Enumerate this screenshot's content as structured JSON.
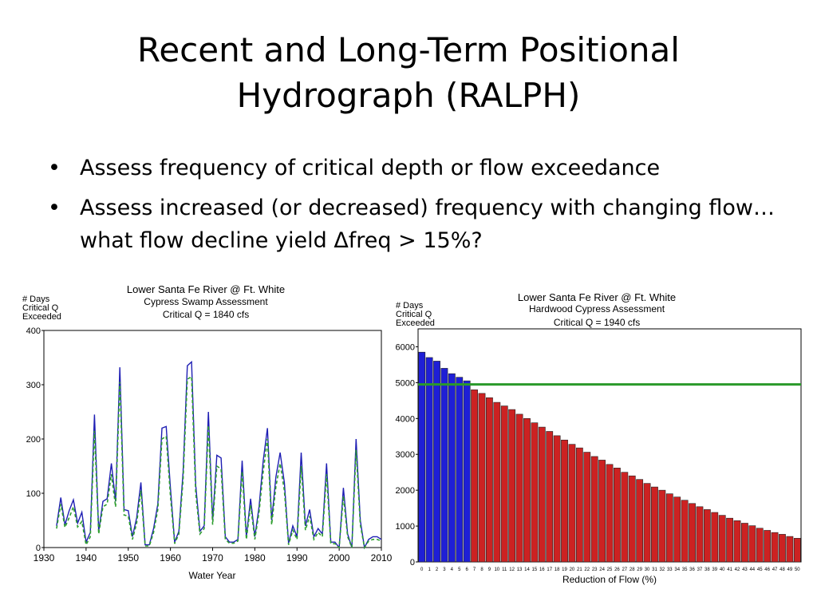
{
  "slide": {
    "title_line1": "Recent and Long-Term Positional",
    "title_line2": "Hydrograph (RALPH)",
    "bullets": [
      "Assess frequency of critical depth or flow exceedance",
      "Assess increased (or decreased) frequency with changing flow…what flow decline yield Δfreq > 15%?"
    ],
    "bullet_glyph": "•"
  },
  "chart_data": [
    {
      "type": "line",
      "title": "Lower Santa Fe River @ Ft. White",
      "subtitle": "Cypress Swamp Assessment",
      "annotation": "Critical Q = 1840 cfs",
      "ylabel_lines": [
        "# Days",
        "Critical Q",
        "Exceeded"
      ],
      "xlabel": "Water Year",
      "xlim": [
        1930,
        2010
      ],
      "ylim": [
        0,
        400
      ],
      "xticks": [
        "1930",
        "1940",
        "1950",
        "1960",
        "1970",
        "1980",
        "1990",
        "2000",
        "2010"
      ],
      "xtick_values": [
        1930,
        1940,
        1950,
        1960,
        1970,
        1980,
        1990,
        2000,
        2010
      ],
      "yticks": [
        "0",
        "100",
        "200",
        "300",
        "400"
      ],
      "ytick_values": [
        0,
        100,
        200,
        300,
        400
      ],
      "grid": false,
      "colors": {
        "solid": "#1f1fb4",
        "dashed": "#2e9e2e"
      },
      "x": [
        1933,
        1934,
        1935,
        1936,
        1937,
        1938,
        1939,
        1940,
        1941,
        1942,
        1943,
        1944,
        1945,
        1946,
        1947,
        1948,
        1949,
        1950,
        1951,
        1952,
        1953,
        1954,
        1955,
        1956,
        1957,
        1958,
        1959,
        1960,
        1961,
        1962,
        1963,
        1964,
        1965,
        1966,
        1967,
        1968,
        1969,
        1970,
        1971,
        1972,
        1973,
        1974,
        1975,
        1976,
        1977,
        1978,
        1979,
        1980,
        1981,
        1982,
        1983,
        1984,
        1985,
        1986,
        1987,
        1988,
        1989,
        1990,
        1991,
        1992,
        1993,
        1994,
        1995,
        1996,
        1997,
        1998,
        1999,
        2000,
        2001,
        2002,
        2003,
        2004,
        2005,
        2006,
        2007,
        2008,
        2009,
        2010
      ],
      "series": [
        {
          "style": "solid",
          "values": [
            40,
            92,
            42,
            68,
            88,
            45,
            65,
            10,
            28,
            245,
            30,
            85,
            90,
            155,
            85,
            332,
            70,
            68,
            20,
            55,
            120,
            5,
            5,
            35,
            80,
            220,
            223,
            110,
            10,
            30,
            140,
            335,
            342,
            115,
            30,
            40,
            250,
            50,
            170,
            165,
            20,
            10,
            10,
            15,
            160,
            20,
            90,
            20,
            75,
            160,
            220,
            50,
            130,
            175,
            120,
            8,
            40,
            20,
            175,
            40,
            70,
            20,
            35,
            25,
            155,
            10,
            10,
            0,
            110,
            25,
            0,
            200,
            50,
            0,
            15,
            20,
            20,
            15
          ]
        },
        {
          "style": "dashed",
          "values": [
            35,
            80,
            37,
            55,
            75,
            38,
            48,
            5,
            20,
            215,
            25,
            75,
            80,
            135,
            75,
            305,
            60,
            58,
            15,
            45,
            105,
            3,
            3,
            28,
            70,
            200,
            205,
            95,
            7,
            25,
            125,
            310,
            315,
            100,
            25,
            35,
            225,
            42,
            150,
            145,
            15,
            8,
            8,
            12,
            140,
            15,
            78,
            15,
            65,
            140,
            200,
            42,
            112,
            155,
            105,
            5,
            32,
            15,
            150,
            32,
            58,
            15,
            28,
            20,
            135,
            7,
            7,
            0,
            95,
            20,
            0,
            180,
            42,
            0,
            12,
            15,
            15,
            12
          ]
        }
      ]
    },
    {
      "type": "bar",
      "title": "Lower Santa Fe River @ Ft. White",
      "subtitle": "Hardwood Cypress Assessment",
      "annotation": "Critical Q = 1940 cfs",
      "ylabel_lines": [
        "# Days",
        "Critical Q",
        "Exceeded"
      ],
      "xlabel": "Reduction of Flow (%)",
      "ylim": [
        0,
        6500
      ],
      "yticks": [
        "0",
        "1000",
        "2000",
        "3000",
        "4000",
        "5000",
        "6000"
      ],
      "ytick_values": [
        0,
        1000,
        2000,
        3000,
        4000,
        5000,
        6000
      ],
      "categories": [
        "0",
        "1",
        "2",
        "3",
        "4",
        "5",
        "6",
        "7",
        "8",
        "9",
        "10",
        "11",
        "12",
        "13",
        "14",
        "15",
        "16",
        "17",
        "18",
        "19",
        "20",
        "21",
        "22",
        "23",
        "24",
        "25",
        "26",
        "27",
        "28",
        "29",
        "30",
        "31",
        "32",
        "33",
        "34",
        "35",
        "36",
        "37",
        "38",
        "39",
        "40",
        "41",
        "42",
        "43",
        "44",
        "45",
        "46",
        "47",
        "48",
        "49",
        "50"
      ],
      "values": [
        5850,
        5700,
        5600,
        5400,
        5250,
        5150,
        5050,
        4800,
        4700,
        4580,
        4450,
        4350,
        4250,
        4120,
        4000,
        3880,
        3760,
        3640,
        3520,
        3400,
        3280,
        3180,
        3060,
        2940,
        2840,
        2720,
        2620,
        2500,
        2400,
        2300,
        2190,
        2090,
        2000,
        1900,
        1810,
        1720,
        1630,
        1540,
        1460,
        1380,
        1300,
        1220,
        1150,
        1080,
        1010,
        940,
        880,
        820,
        770,
        710,
        660
      ],
      "threshold": 4950,
      "threshold_index": 7,
      "grid": false,
      "colors": {
        "above": "#1f1fd6",
        "below": "#cc2222",
        "threshold": "#2a9a2a"
      }
    }
  ]
}
